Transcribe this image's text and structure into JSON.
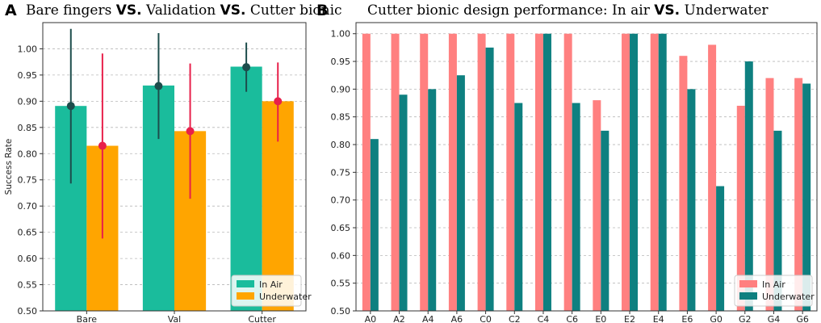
{
  "chart_data": [
    {
      "panel": "A",
      "type": "bar",
      "title_parts": [
        "Bare fingers ",
        "VS.",
        " Validation ",
        "VS.",
        " Cutter bionic"
      ],
      "ylabel": "Success Rate",
      "xlabel": "",
      "ylim": [
        0.5,
        1.05
      ],
      "yticks": [
        "0.50",
        "0.55",
        "0.60",
        "0.65",
        "0.70",
        "0.75",
        "0.80",
        "0.85",
        "0.90",
        "0.95",
        "1.00"
      ],
      "grid": "y-dashed",
      "categories": [
        "Bare",
        "Val",
        "Cutter"
      ],
      "legend_position": "lower-right",
      "series": [
        {
          "name": "In Air",
          "color": "#1ABC9C",
          "values": [
            0.891,
            0.93,
            0.966
          ],
          "error_center": [
            0.891,
            0.929,
            0.965
          ],
          "error_low": [
            0.743,
            0.828,
            0.918
          ],
          "error_high": [
            1.038,
            1.03,
            1.012
          ],
          "error_color": "#1D4D4C"
        },
        {
          "name": "Underwater",
          "color": "#FFA500",
          "values": [
            0.815,
            0.843,
            0.9
          ],
          "error_center": [
            0.815,
            0.843,
            0.9
          ],
          "error_low": [
            0.638,
            0.714,
            0.823
          ],
          "error_high": [
            0.991,
            0.972,
            0.974
          ],
          "error_color": "#E8204A"
        }
      ]
    },
    {
      "panel": "B",
      "type": "bar",
      "title_parts": [
        "Cutter bionic design performance: In air ",
        "VS.",
        " Underwater"
      ],
      "ylabel": "",
      "xlabel": "",
      "ylim": [
        0.5,
        1.02
      ],
      "yticks": [
        "0.50",
        "0.55",
        "0.60",
        "0.65",
        "0.70",
        "0.75",
        "0.80",
        "0.85",
        "0.90",
        "0.95",
        "1.00"
      ],
      "grid": "y-dashed",
      "categories": [
        "A0",
        "A2",
        "A4",
        "A6",
        "C0",
        "C2",
        "C4",
        "C6",
        "E0",
        "E2",
        "E4",
        "E6",
        "G0",
        "G2",
        "G4",
        "G6"
      ],
      "legend_position": "lower-right",
      "series": [
        {
          "name": "In Air",
          "color": "#FF8080",
          "values": [
            1.0,
            1.0,
            1.0,
            1.0,
            1.0,
            1.0,
            1.0,
            1.0,
            0.88,
            1.0,
            1.0,
            0.96,
            0.98,
            0.87,
            0.92,
            0.92
          ]
        },
        {
          "name": "Underwater",
          "color": "#0E8080",
          "values": [
            0.81,
            0.89,
            0.9,
            0.925,
            0.975,
            0.875,
            1.0,
            0.875,
            0.825,
            1.0,
            1.0,
            0.9,
            0.725,
            0.95,
            0.825,
            0.91
          ]
        }
      ]
    }
  ]
}
